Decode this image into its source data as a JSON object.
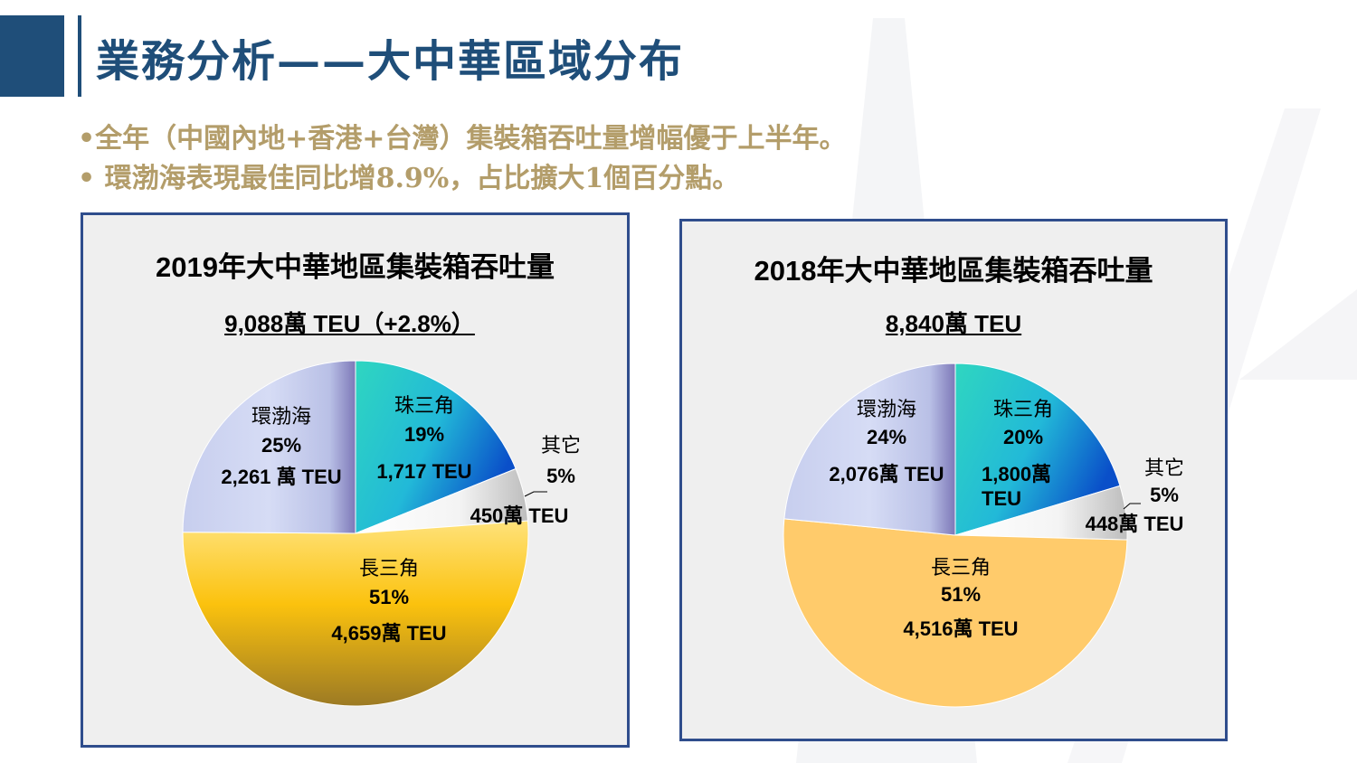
{
  "page": {
    "title": "業務分析——大中華區域分布",
    "bullets": [
      "•全年（中國內地+香港+台灣）集裝箱吞吐量增幅優于上半年。",
      "• 環渤海表現最佳同比增8.9%，占比擴大1個百分點。"
    ]
  },
  "colors": {
    "accent": "#1f4e79",
    "bullet_text": "#b39d6a",
    "panel_border": "#2f4d8c"
  },
  "chart_data": [
    {
      "type": "pie",
      "title": "2019年大中華地區集裝箱吞吐量",
      "subtitle": "9,088萬 TEU（+2.8%）",
      "slices": [
        {
          "name": "珠三角",
          "percent": 19,
          "value": 1717,
          "value_label": "1,717 TEU"
        },
        {
          "name": "其它",
          "percent": 5,
          "value": 450,
          "value_label": "450萬 TEU"
        },
        {
          "name": "長三角",
          "percent": 51,
          "value": 4659,
          "value_label": "4,659萬 TEU"
        },
        {
          "name": "環渤海",
          "percent": 25,
          "value": 2261,
          "value_label": "2,261 萬 TEU"
        }
      ]
    },
    {
      "type": "pie",
      "title": "2018年大中華地區集裝箱吞吐量",
      "subtitle": "8,840萬 TEU",
      "slices": [
        {
          "name": "珠三角",
          "percent": 20,
          "value": 1800,
          "value_label": "1,800萬 TEU"
        },
        {
          "name": "其它",
          "percent": 5,
          "value": 448,
          "value_label": "448萬 TEU"
        },
        {
          "name": "長三角",
          "percent": 51,
          "value": 4516,
          "value_label": "4,516萬 TEU"
        },
        {
          "name": "環渤海",
          "percent": 24,
          "value": 2076,
          "value_label": "2,076萬 TEU"
        }
      ]
    }
  ]
}
